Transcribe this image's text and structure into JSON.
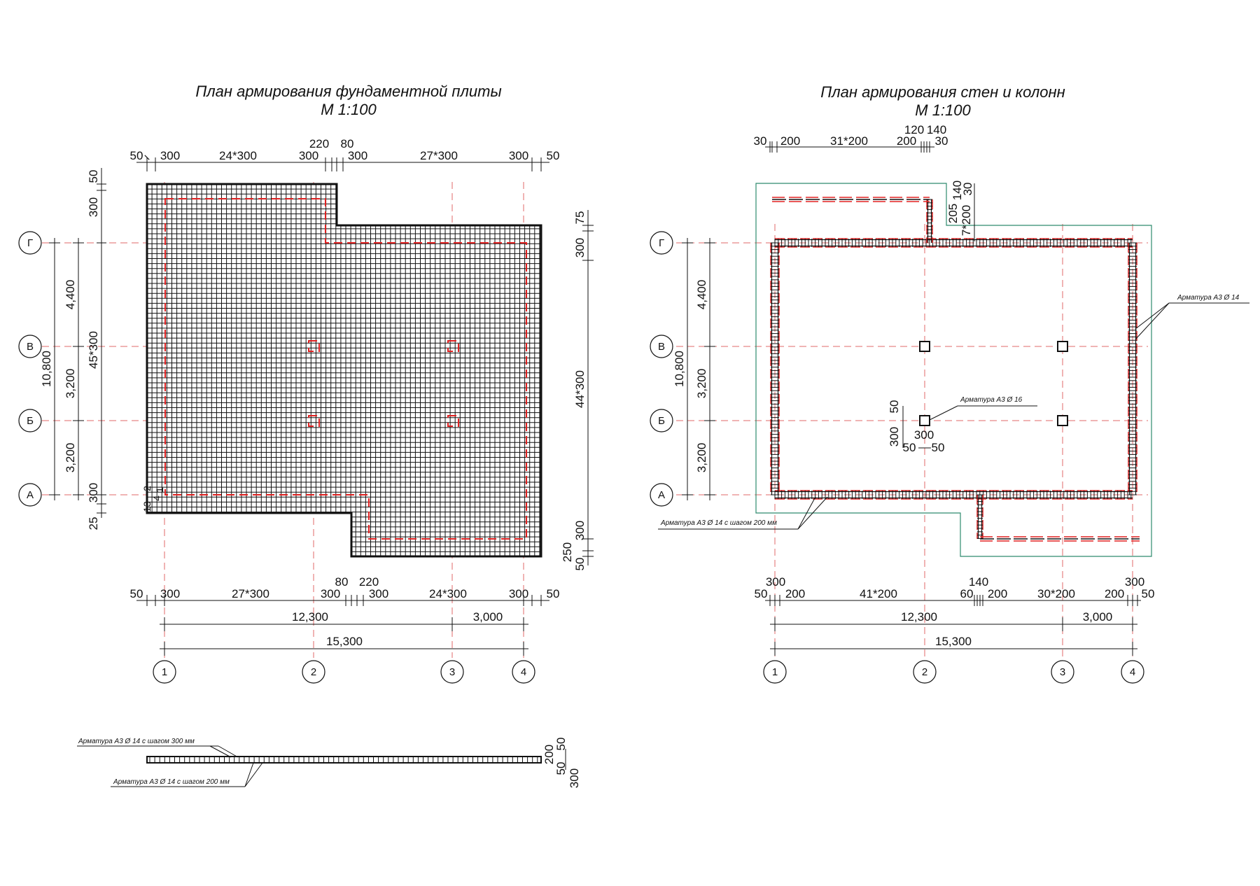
{
  "left_plan": {
    "title": "План армирования фундаментной плиты",
    "scale": "М 1:100",
    "top_dims": [
      "50",
      "300",
      "24*300",
      "300",
      "220",
      "80",
      "300",
      "27*300",
      "300",
      "50"
    ],
    "bottom_dims": [
      "50",
      "300",
      "27*300",
      "300",
      "80",
      "220",
      "300",
      "24*300",
      "300",
      "50"
    ],
    "totals": [
      "12,300",
      "3,000",
      "15,300"
    ],
    "left_dims": [
      "50",
      "300",
      "4,400",
      "45*300",
      "3,200",
      "3,200",
      "10,800",
      "300",
      "25",
      "13",
      "2",
      "4",
      "1"
    ],
    "right_dims": [
      "75",
      "300",
      "44*300",
      "300",
      "250",
      "50"
    ],
    "axes_rows": [
      "Г",
      "В",
      "Б",
      "А"
    ],
    "axes_cols": [
      "1",
      "2",
      "3",
      "4"
    ]
  },
  "right_plan": {
    "title": "План армирования стен и колонн",
    "scale": "М 1:100",
    "top_dims": [
      "30",
      "200",
      "31*200",
      "200",
      "120",
      "140",
      "30"
    ],
    "notch_dims": [
      "205",
      "140",
      "7*200",
      "30"
    ],
    "bottom_dims": [
      "300",
      "50",
      "200",
      "41*200",
      "140",
      "60",
      "200",
      "30*200",
      "200",
      "300",
      "50"
    ],
    "totals": [
      "12,300",
      "3,000",
      "15,300"
    ],
    "left_dims": [
      "4,400",
      "3,200",
      "3,200",
      "10,800"
    ],
    "column_dims": [
      "50",
      "300",
      "300",
      "50",
      "50"
    ],
    "axes_rows": [
      "Г",
      "В",
      "Б",
      "А"
    ],
    "axes_cols": [
      "1",
      "2",
      "3",
      "4"
    ],
    "leader_labels": [
      "Арматура А3 Ø 14",
      "Арматура А3 Ø 16",
      "Арматура А3 Ø 14 с шагом 200 мм"
    ]
  },
  "section": {
    "leader_top": "Арматура А3 Ø 14 с шагом 300 мм",
    "leader_bottom": "Арматура А3 Ø 14 с шагом 200 мм",
    "dims": [
      "200",
      "50",
      "50",
      "300"
    ]
  },
  "colors": {
    "line": "#111111",
    "rebar_red": "#e02020",
    "axis_red": "#e06a6a",
    "outline_green": "#2e8b6e"
  }
}
